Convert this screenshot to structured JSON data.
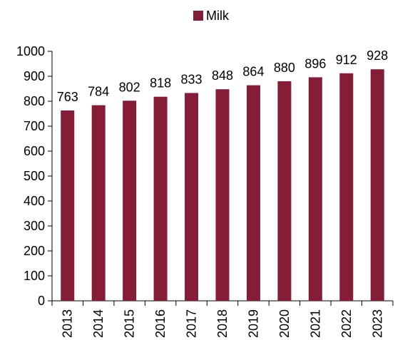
{
  "chart_data": {
    "type": "bar",
    "categories": [
      "2013",
      "2014",
      "2015",
      "2016",
      "2017",
      "2018",
      "2019",
      "2020",
      "2021",
      "2022",
      "2023"
    ],
    "series": [
      {
        "name": "Milk",
        "values": [
          763,
          784,
          802,
          818,
          833,
          848,
          864,
          880,
          896,
          912,
          928
        ],
        "color": "#861D38"
      }
    ],
    "ylim": [
      0,
      1000
    ],
    "yticks": [
      0,
      100,
      200,
      300,
      400,
      500,
      600,
      700,
      800,
      900,
      1000
    ],
    "grid": false,
    "legend_position": "top-center",
    "data_labels": true,
    "xtick_rotation": "vertical"
  }
}
